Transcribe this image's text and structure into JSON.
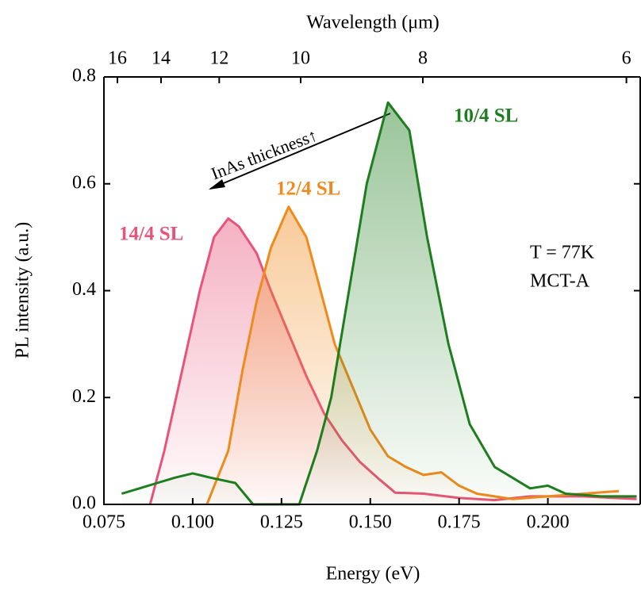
{
  "chart_data": {
    "type": "line",
    "xlabel": "Energy (eV)",
    "ylabel": "PL intensity (a.u.)",
    "x2label": "Wavelength (μm)",
    "xlim": [
      0.075,
      0.226
    ],
    "ylim": [
      0,
      0.8
    ],
    "xticks": [
      0.075,
      {
        "value": 0.1,
        "label": "0.100"
      },
      0.125,
      {
        "value": 0.15,
        "label": "0.150"
      },
      0.175,
      {
        "value": 0.2,
        "label": "0.200"
      }
    ],
    "yticks": [
      {
        "value": 0,
        "label": "0.0"
      },
      0.2,
      0.4,
      0.6,
      0.8
    ],
    "x2scale": "reciprocal",
    "x2lim": [
      16.74,
      5.9
    ],
    "x2ticks": [
      16,
      14,
      12,
      10,
      8,
      6
    ],
    "annotations": [
      "InAs thickness↑",
      "T = 77K",
      "MCT-A"
    ],
    "series": [
      {
        "name": "14/4 SL",
        "color": "#e8537a",
        "x": [
          0.088,
          0.092,
          0.097,
          0.102,
          0.106,
          0.11,
          0.113,
          0.118,
          0.122,
          0.127,
          0.132,
          0.137,
          0.142,
          0.147,
          0.152,
          0.157,
          0.165,
          0.175,
          0.185,
          0.195,
          0.21,
          0.225
        ],
        "values": [
          0,
          0.1,
          0.25,
          0.4,
          0.5,
          0.535,
          0.52,
          0.47,
          0.4,
          0.32,
          0.24,
          0.17,
          0.12,
          0.08,
          0.05,
          0.022,
          0.02,
          0.012,
          0.008,
          0.015,
          0.015,
          0.01
        ]
      },
      {
        "name": "12/4 SL",
        "color": "#f08a1c",
        "x": [
          0.104,
          0.11,
          0.114,
          0.118,
          0.122,
          0.127,
          0.132,
          0.136,
          0.14,
          0.145,
          0.15,
          0.155,
          0.16,
          0.165,
          0.17,
          0.175,
          0.18,
          0.19,
          0.2,
          0.21,
          0.22
        ],
        "values": [
          0,
          0.1,
          0.25,
          0.38,
          0.48,
          0.557,
          0.5,
          0.4,
          0.3,
          0.22,
          0.14,
          0.09,
          0.07,
          0.055,
          0.06,
          0.035,
          0.02,
          0.01,
          0.015,
          0.02,
          0.025
        ]
      },
      {
        "name": "10/4 SL",
        "color": "#1e7d1e",
        "x": [
          0.08,
          0.085,
          0.09,
          0.095,
          0.1,
          0.105,
          0.112,
          0.117,
          0.123,
          0.13,
          0.135,
          0.139,
          0.144,
          0.149,
          0.155,
          0.161,
          0.166,
          0.172,
          0.178,
          0.185,
          0.195,
          0.2,
          0.205,
          0.215,
          0.225
        ],
        "values": [
          0.02,
          0.03,
          0.04,
          0.05,
          0.058,
          0.05,
          0.04,
          0,
          0,
          0,
          0.1,
          0.2,
          0.4,
          0.6,
          0.752,
          0.7,
          0.5,
          0.3,
          0.15,
          0.07,
          0.03,
          0.035,
          0.02,
          0.015,
          0.015
        ]
      }
    ]
  }
}
